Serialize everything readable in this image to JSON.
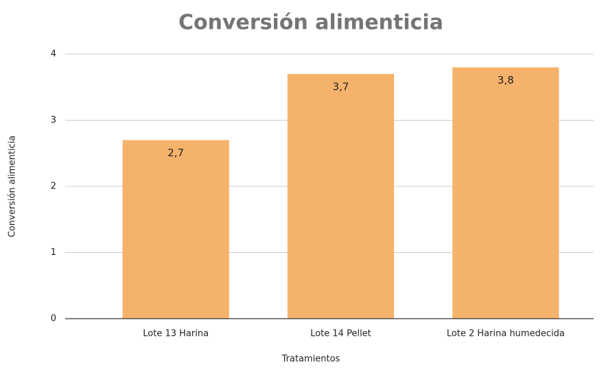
{
  "chart_data": {
    "type": "bar",
    "title": "Conversión alimenticia",
    "x_label": "Tratamientos",
    "y_label": "Conversión alimenticia",
    "categories": [
      "Lote 13 Harina",
      "Lote 14 Pellet",
      "Lote 2 Harina humedecida"
    ],
    "values": [
      2.7,
      3.7,
      3.8
    ],
    "value_labels": [
      "2,7",
      "3,7",
      "3,8"
    ],
    "color": "#f5b26b",
    "ylim": [
      0,
      4
    ],
    "yticks": [
      0,
      1,
      2,
      3,
      4
    ],
    "grid": true
  }
}
